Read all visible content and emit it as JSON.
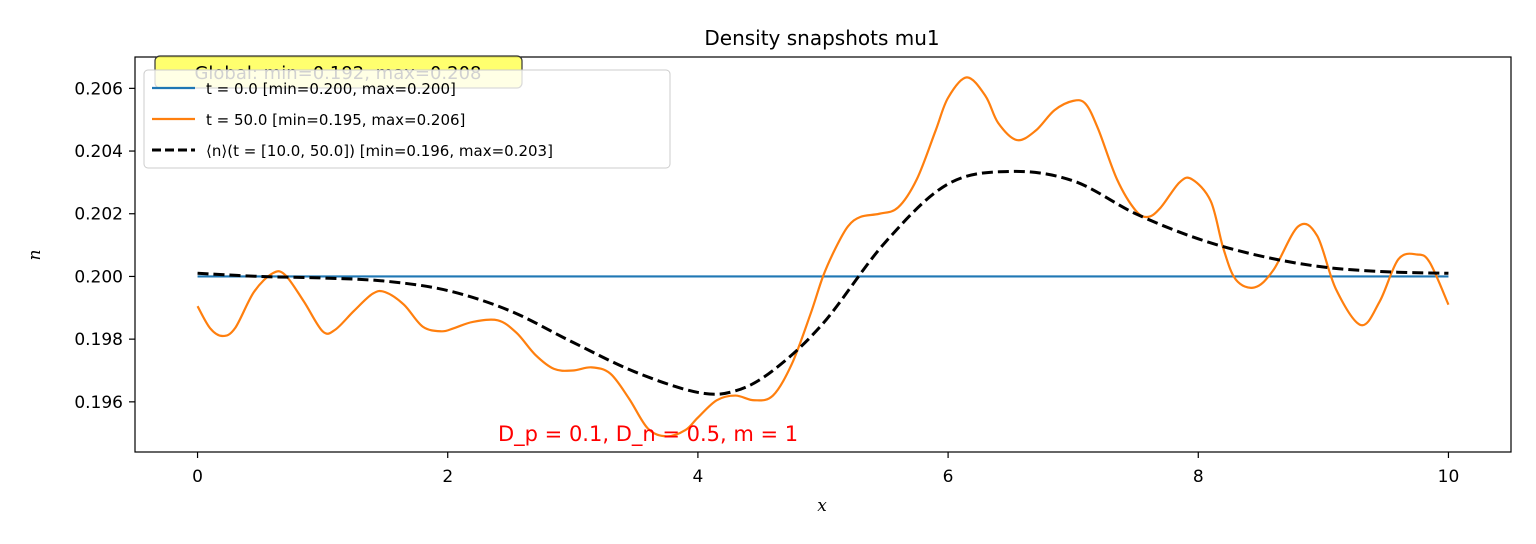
{
  "chart_data": {
    "type": "line",
    "title": "Density snapshots mu1",
    "xlabel": "x",
    "ylabel": "n",
    "xlim": [
      -0.5,
      10.5
    ],
    "ylim": [
      0.1944,
      0.207
    ],
    "x_ticks": [
      0,
      2,
      4,
      6,
      8,
      10
    ],
    "y_ticks": [
      0.196,
      0.198,
      0.2,
      0.202,
      0.204,
      0.206
    ],
    "x_tick_labels": [
      "0",
      "2",
      "4",
      "6",
      "8",
      "10"
    ],
    "y_tick_labels": [
      "0.196",
      "0.198",
      "0.200",
      "0.202",
      "0.204",
      "0.206"
    ],
    "grid": false,
    "legend_position": "top-left",
    "global_annotation": "Global: min=0.192, max=0.208",
    "param_annotation": "D_p = 0.1, D_n = 0.5, m = 1",
    "series": [
      {
        "name": "t = 0.0 [min=0.200, max=0.200]",
        "color": "#1f77b4",
        "style": "solid",
        "x": [
          0,
          10
        ],
        "y": [
          0.2,
          0.2
        ]
      },
      {
        "name": "t = 50.0 [min=0.195, max=0.206]",
        "color": "#ff7f0e",
        "style": "solid",
        "x": [
          0,
          0.1,
          0.2,
          0.3,
          0.45,
          0.6,
          0.7,
          0.85,
          1.0,
          1.1,
          1.25,
          1.4,
          1.5,
          1.65,
          1.8,
          1.95,
          2.05,
          2.2,
          2.4,
          2.55,
          2.7,
          2.85,
          3.0,
          3.15,
          3.3,
          3.45,
          3.6,
          3.75,
          3.9,
          4.0,
          4.15,
          4.3,
          4.45,
          4.6,
          4.75,
          4.9,
          5.0,
          5.1,
          5.2,
          5.3,
          5.45,
          5.6,
          5.75,
          5.9,
          6.0,
          6.15,
          6.3,
          6.4,
          6.55,
          6.7,
          6.85,
          7.0,
          7.1,
          7.2,
          7.35,
          7.5,
          7.6,
          7.7,
          7.85,
          7.95,
          8.1,
          8.2,
          8.3,
          8.45,
          8.6,
          8.8,
          8.95,
          9.1,
          9.3,
          9.45,
          9.6,
          9.75,
          9.85,
          10.0
        ],
        "y": [
          0.19905,
          0.19835,
          0.1981,
          0.19835,
          0.1995,
          0.2001,
          0.20005,
          0.1992,
          0.19825,
          0.1983,
          0.1989,
          0.19945,
          0.1995,
          0.1991,
          0.1984,
          0.19825,
          0.19835,
          0.19855,
          0.1986,
          0.1982,
          0.1975,
          0.19705,
          0.197,
          0.1971,
          0.1969,
          0.1961,
          0.19515,
          0.1949,
          0.1951,
          0.1955,
          0.19605,
          0.1962,
          0.19605,
          0.1962,
          0.1972,
          0.1988,
          0.2,
          0.2009,
          0.2016,
          0.2019,
          0.202,
          0.2022,
          0.2031,
          0.20465,
          0.2057,
          0.20635,
          0.20575,
          0.2049,
          0.20435,
          0.20465,
          0.2053,
          0.2056,
          0.2055,
          0.2047,
          0.2031,
          0.2021,
          0.2019,
          0.2022,
          0.203,
          0.2031,
          0.2024,
          0.2009,
          0.1999,
          0.19965,
          0.2002,
          0.2016,
          0.2013,
          0.1996,
          0.19845,
          0.1992,
          0.20055,
          0.2007,
          0.20045,
          0.1991
        ]
      },
      {
        "name": "⟨n⟩(t = [10.0, 50.0]) [min=0.196, max=0.203]",
        "color": "#000000",
        "style": "dashed",
        "x": [
          0,
          0.5,
          1.0,
          1.5,
          2.0,
          2.5,
          3.0,
          3.5,
          4.0,
          4.3,
          4.6,
          5.0,
          5.5,
          6.0,
          6.5,
          7.0,
          7.5,
          8.0,
          8.5,
          9.0,
          9.5,
          10.0
        ],
        "y": [
          0.2001,
          0.2,
          0.19995,
          0.19985,
          0.19955,
          0.1989,
          0.1979,
          0.19695,
          0.1963,
          0.19635,
          0.197,
          0.1985,
          0.2011,
          0.20295,
          0.20335,
          0.20305,
          0.202,
          0.2012,
          0.20065,
          0.2003,
          0.20015,
          0.2001
        ]
      }
    ]
  }
}
